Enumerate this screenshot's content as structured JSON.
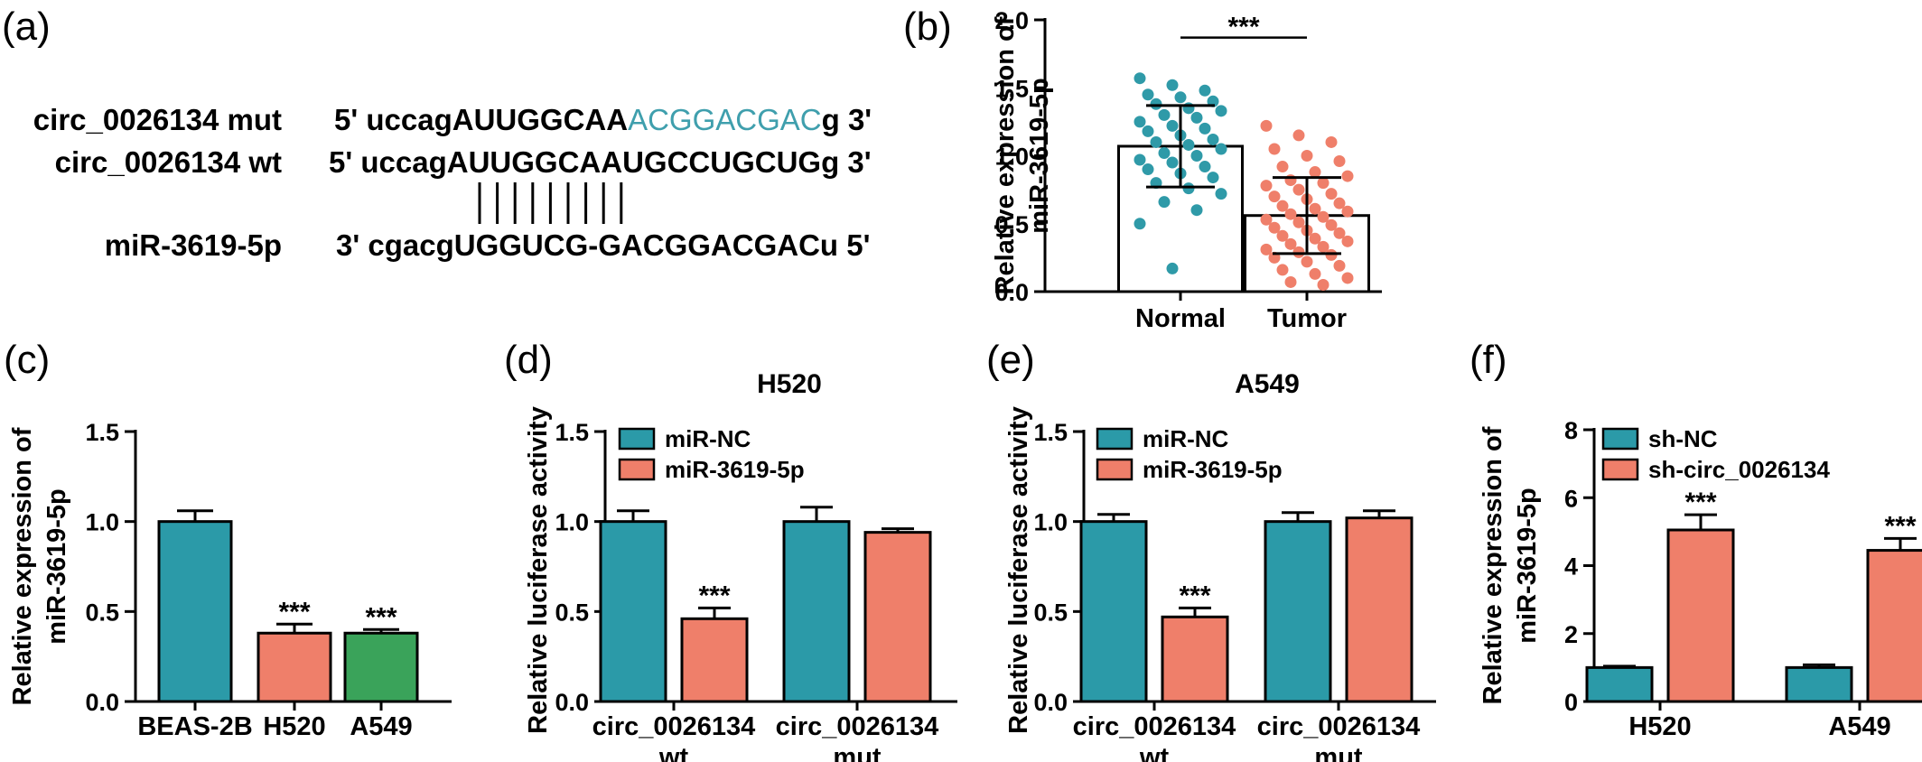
{
  "colors": {
    "teal": "#2b9aa8",
    "salmon": "#ef7f6a",
    "green": "#3aa35a",
    "seq_teal": "#3f9fad",
    "dot_teal": "#2f9aa8",
    "dot_salmon": "#ef7f6a"
  },
  "panel_a": {
    "label": "(a)",
    "rows": [
      {
        "name": "circ_0026134 mut",
        "prefix": "5' uccagAUUGGCAA",
        "highlight": "ACGGACGAC",
        "suffix": "g 3'"
      },
      {
        "name": "circ_0026134 wt",
        "prefix": "5' uccagAUUGGCAAUGCCUGCUGg 3'",
        "highlight": "",
        "suffix": ""
      },
      {
        "name": "miR-3619-5p",
        "prefix": "3' cgacgUGGUCG-GACGGACGACu 5'",
        "highlight": "",
        "suffix": ""
      }
    ],
    "pair_lines": 9
  },
  "chart_data": [
    {
      "label": "(b)",
      "type": "scatter",
      "title": "",
      "ylabel": "Relative expression of miR-3619-5p",
      "ylim": [
        0,
        2.0
      ],
      "yticks": [
        "0.0",
        "0.5",
        "1.0",
        "1.5",
        "2.0"
      ],
      "categories": [
        "Normal",
        "Tumor"
      ],
      "means": [
        1.07,
        0.56
      ],
      "errors": [
        0.3,
        0.28
      ],
      "significance": "***",
      "points": [
        [
          1.57,
          1.52,
          1.48,
          1.45,
          1.43,
          1.4,
          1.38,
          1.35,
          1.33,
          1.3,
          1.28,
          1.25,
          1.22,
          1.2,
          1.18,
          1.15,
          1.12,
          1.1,
          1.08,
          1.05,
          1.02,
          1.0,
          0.97,
          0.95,
          0.92,
          0.9,
          0.87,
          0.84,
          0.8,
          0.76,
          0.72,
          0.66,
          0.6,
          0.5,
          0.17
        ],
        [
          1.22,
          1.15,
          1.1,
          1.05,
          1.0,
          0.96,
          0.92,
          0.88,
          0.85,
          0.82,
          0.8,
          0.78,
          0.75,
          0.72,
          0.7,
          0.68,
          0.65,
          0.63,
          0.61,
          0.59,
          0.57,
          0.55,
          0.53,
          0.51,
          0.49,
          0.47,
          0.45,
          0.43,
          0.41,
          0.39,
          0.37,
          0.35,
          0.33,
          0.31,
          0.29,
          0.27,
          0.25,
          0.22,
          0.19,
          0.16,
          0.13,
          0.1,
          0.07,
          0.05
        ]
      ]
    },
    {
      "label": "(c)",
      "type": "bar",
      "title": "",
      "ylabel": "Relative expression of miR-3619-5p",
      "ylim": [
        0,
        1.5
      ],
      "yticks": [
        "0.0",
        "0.5",
        "1.0",
        "1.5"
      ],
      "categories": [
        "BEAS-2B",
        "H520",
        "A549"
      ],
      "values": [
        1.0,
        0.38,
        0.38
      ],
      "errors": [
        0.06,
        0.05,
        0.02
      ],
      "stars": [
        "",
        "***",
        "***"
      ]
    },
    {
      "label": "(d)",
      "type": "bar",
      "title": "H520",
      "ylabel": "Relative luciferase activity",
      "ylim": [
        0,
        1.5
      ],
      "yticks": [
        "0.0",
        "0.5",
        "1.0",
        "1.5"
      ],
      "categories": [
        [
          "circ_0026134",
          "wt"
        ],
        [
          "circ_0026134",
          "mut"
        ]
      ],
      "series": [
        {
          "name": "miR-NC",
          "values": [
            1.0,
            1.0
          ],
          "errors": [
            0.06,
            0.08
          ],
          "stars": [
            "",
            ""
          ]
        },
        {
          "name": "miR-3619-5p",
          "values": [
            0.46,
            0.94
          ],
          "errors": [
            0.06,
            0.02
          ],
          "stars": [
            "***",
            ""
          ]
        }
      ]
    },
    {
      "label": "(e)",
      "type": "bar",
      "title": "A549",
      "ylabel": "Relative luciferase activity",
      "ylim": [
        0,
        1.5
      ],
      "yticks": [
        "0.0",
        "0.5",
        "1.0",
        "1.5"
      ],
      "categories": [
        [
          "circ_0026134",
          "wt"
        ],
        [
          "circ_0026134",
          "mut"
        ]
      ],
      "series": [
        {
          "name": "miR-NC",
          "values": [
            1.0,
            1.0
          ],
          "errors": [
            0.04,
            0.05
          ],
          "stars": [
            "",
            ""
          ]
        },
        {
          "name": "miR-3619-5p",
          "values": [
            0.47,
            1.02
          ],
          "errors": [
            0.05,
            0.04
          ],
          "stars": [
            "***",
            ""
          ]
        }
      ]
    },
    {
      "label": "(f)",
      "type": "bar",
      "title": "",
      "ylabel": "Relative expression of miR-3619-5p",
      "ylim": [
        0,
        8
      ],
      "yticks": [
        "0",
        "2",
        "4",
        "6",
        "8"
      ],
      "categories": [
        [
          "H520"
        ],
        [
          "A549"
        ]
      ],
      "series": [
        {
          "name": "sh-NC",
          "values": [
            1.0,
            1.0
          ],
          "errors": [
            0.04,
            0.08
          ],
          "stars": [
            "",
            ""
          ]
        },
        {
          "name": "sh-circ_0026134",
          "values": [
            5.05,
            4.45
          ],
          "errors": [
            0.45,
            0.35
          ],
          "stars": [
            "***",
            "***"
          ]
        }
      ]
    }
  ]
}
